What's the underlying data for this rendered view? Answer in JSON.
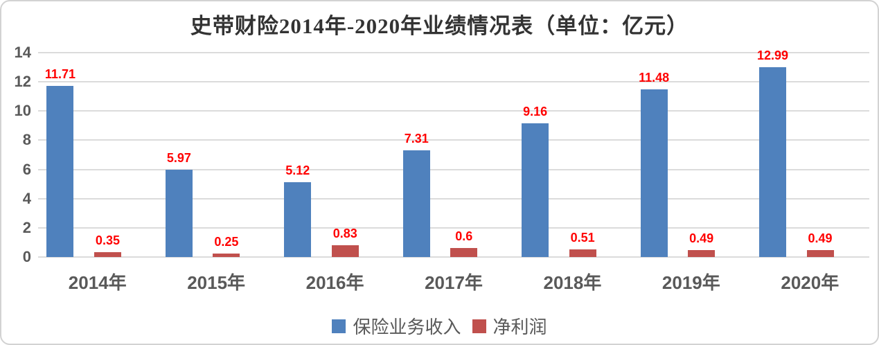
{
  "chart_data": {
    "type": "bar",
    "title": "史带财险2014年-2020年业绩情况表（单位：亿元）",
    "categories": [
      "2014年",
      "2015年",
      "2016年",
      "2017年",
      "2018年",
      "2019年",
      "2020年"
    ],
    "series": [
      {
        "name": "保险业务收入",
        "color": "#4F81BD",
        "values": [
          11.71,
          5.97,
          5.12,
          7.31,
          9.16,
          11.48,
          12.99
        ],
        "labels": [
          "11.71",
          "5.97",
          "5.12",
          "7.31",
          "9.16",
          "11.48",
          "12.99"
        ]
      },
      {
        "name": "净利润",
        "color": "#C0504D",
        "values": [
          0.35,
          0.25,
          0.83,
          0.6,
          0.51,
          0.49,
          0.49
        ],
        "labels": [
          "0.35",
          "0.25",
          "0.83",
          "0.6",
          "0.51",
          "0.49",
          "0.49"
        ]
      }
    ],
    "xlabel": "",
    "ylabel": "",
    "ylim": [
      0,
      14
    ],
    "yticks": [
      0,
      2,
      4,
      6,
      8,
      10,
      12,
      14
    ],
    "grid": true,
    "grid_color": "#DBDBDB",
    "axis_label_color": "#595959",
    "value_label_color": "#FF0000",
    "legend_position": "bottom"
  }
}
